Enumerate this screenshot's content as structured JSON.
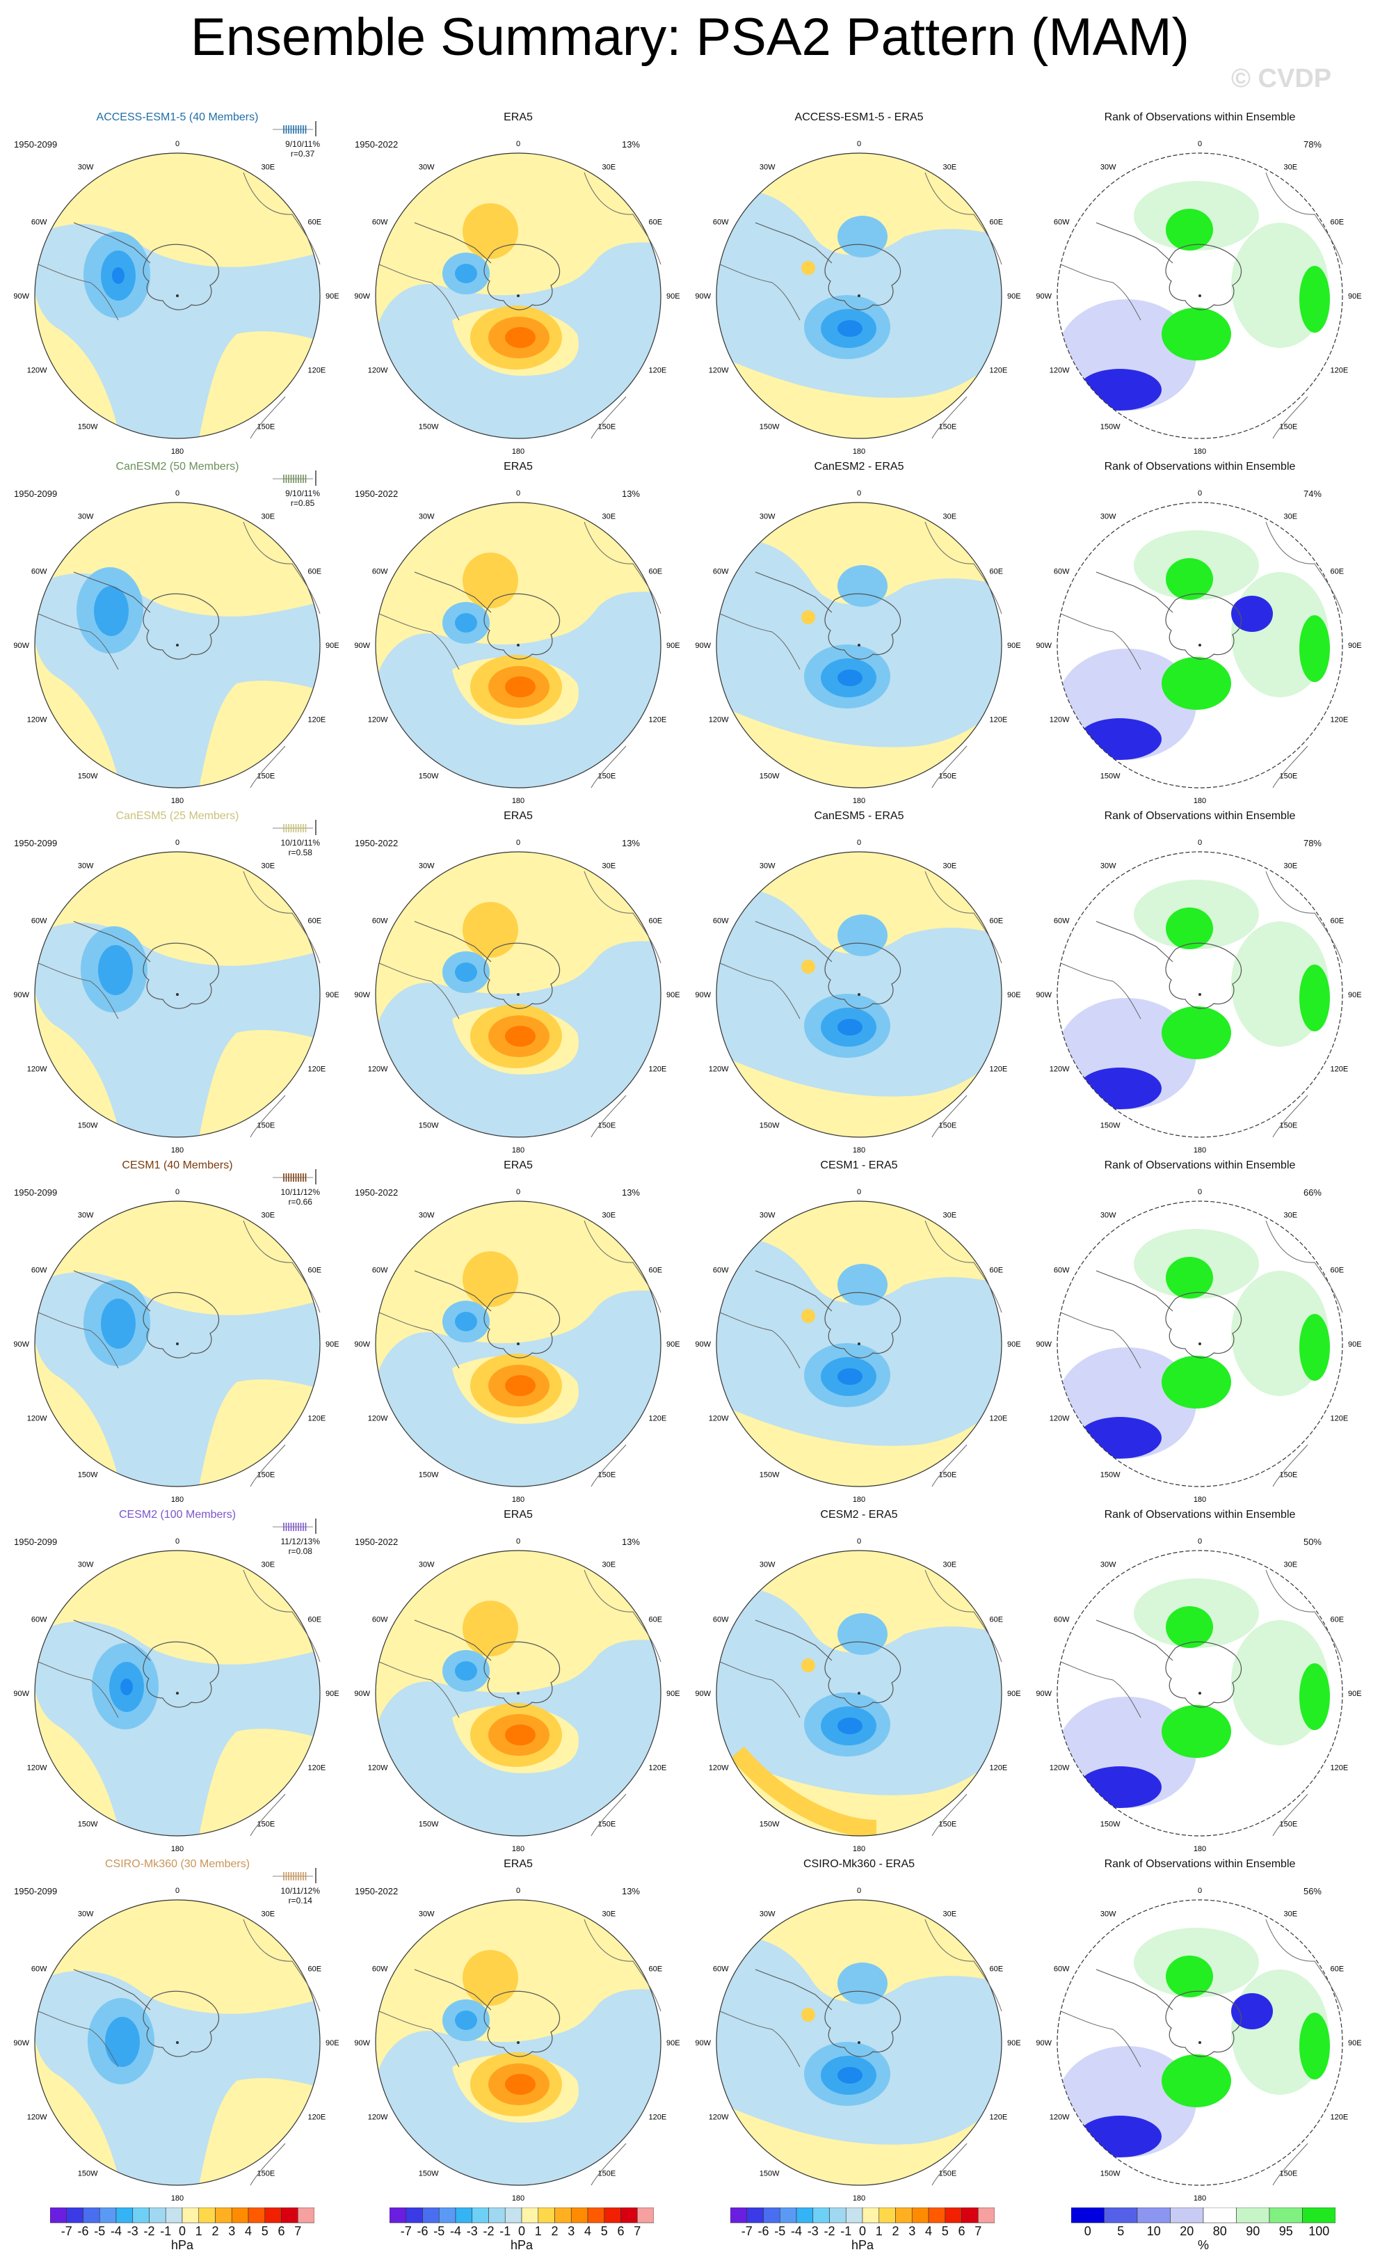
{
  "title": "Ensemble Summary: PSA2 Pattern (MAM)",
  "watermark": "© CVDP",
  "labels": {
    "era5": "ERA5",
    "rank": "Rank of Observations within Ensemble",
    "lon": {
      "top": "0",
      "r30e": "30E",
      "r60e": "60E",
      "r90e": "90E",
      "r120e": "120E",
      "r150e": "150E",
      "bottom": "180",
      "l150w": "150W",
      "l120w": "120W",
      "l90w": "90W",
      "l60w": "60W",
      "l30w": "30W"
    }
  },
  "rows": [
    {
      "model": "ACCESS-ESM1-5 (40 Members)",
      "diff": "ACCESS-ESM1-5 - ERA5",
      "color": "#1f6fa8",
      "period": "1950-2099",
      "era_period": "1950-2022",
      "stats": "9/10/11%",
      "r": "r=0.37",
      "era_pct": "13%",
      "rank_pct": "78%"
    },
    {
      "model": "CanESM2 (50 Members)",
      "diff": "CanESM2 - ERA5",
      "color": "#6c8f5a",
      "period": "1950-2099",
      "era_period": "1950-2022",
      "stats": "9/10/11%",
      "r": "r=0.85",
      "era_pct": "13%",
      "rank_pct": "74%"
    },
    {
      "model": "CanESM5 (25 Members)",
      "diff": "CanESM5 - ERA5",
      "color": "#c9c27a",
      "period": "1950-2099",
      "era_period": "1950-2022",
      "stats": "10/10/11%",
      "r": "r=0.58",
      "era_pct": "13%",
      "rank_pct": "78%"
    },
    {
      "model": "CESM1 (40 Members)",
      "diff": "CESM1 - ERA5",
      "color": "#7a3b0f",
      "period": "1950-2099",
      "era_period": "1950-2022",
      "stats": "10/11/12%",
      "r": "r=0.66",
      "era_pct": "13%",
      "rank_pct": "66%"
    },
    {
      "model": "CESM2 (100 Members)",
      "diff": "CESM2 - ERA5",
      "color": "#7b55c9",
      "period": "1950-2099",
      "era_period": "1950-2022",
      "stats": "11/12/13%",
      "r": "r=0.08",
      "era_pct": "13%",
      "rank_pct": "50%"
    },
    {
      "model": "CSIRO-Mk360 (30 Members)",
      "diff": "CSIRO-Mk360 - ERA5",
      "color": "#c9955a",
      "period": "1950-2099",
      "era_period": "1950-2022",
      "stats": "10/11/12%",
      "r": "r=0.14",
      "era_pct": "13%",
      "rank_pct": "56%"
    }
  ],
  "colorbars": {
    "hpa_labels": [
      "-7",
      "-6",
      "-5",
      "-4",
      "-3",
      "-2",
      "-1",
      "0",
      "1",
      "2",
      "3",
      "4",
      "5",
      "6",
      "7"
    ],
    "hpa_unit": "hPa",
    "rank_labels": [
      "0",
      "5",
      "10",
      "20",
      "80",
      "90",
      "95",
      "100"
    ],
    "rank_unit": "%",
    "hpa_colors": [
      "#6a1ee0",
      "#3a3ae6",
      "#4a6ef0",
      "#5a9af5",
      "#34b3f5",
      "#6fd0f5",
      "#9fd8f0",
      "#c5e2ee",
      "#fff4a8",
      "#ffd84a",
      "#ffb020",
      "#ff8c00",
      "#ff5a00",
      "#f02000",
      "#d80010",
      "#f6a0a0"
    ],
    "rank_colors": [
      "#0000e0",
      "#5560e8",
      "#8c96f0",
      "#c8ccf5",
      "#ffffff",
      "#c8f5c8",
      "#80f080",
      "#20e820"
    ]
  },
  "colors": {
    "yellow": "#fff4a8",
    "lightblue": "#bde0f2",
    "blue1": "#7cc8f2",
    "blue2": "#3aa8f0",
    "blue3": "#1a88ee",
    "orange1": "#ffd24a",
    "orange2": "#ffa220",
    "orange3": "#ff7800",
    "orange4": "#f24a10",
    "rankblue": "#2a2ae6",
    "ranklight": "#d2d6f8",
    "rankgreen": "#22ee22",
    "rankpale": "#d8f6d8"
  }
}
